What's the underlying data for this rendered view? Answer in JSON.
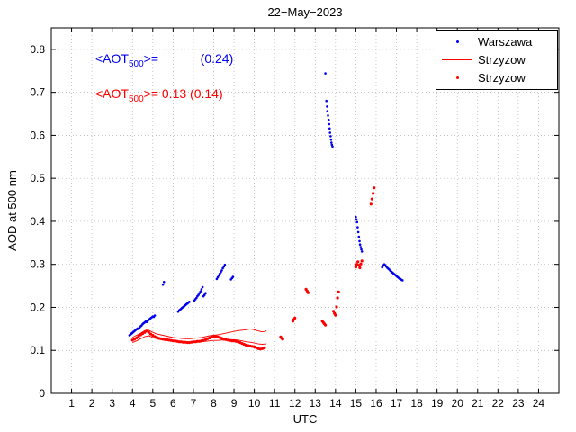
{
  "title": "22−May−2023",
  "annotations": {
    "blue": {
      "pre": "<AOT",
      "sub": "500",
      "post": ">=            (0.24)",
      "color": "#0000ee"
    },
    "red": {
      "pre": "<AOT",
      "sub": "500",
      "post": ">= 0.13 (0.14)",
      "color": "#ff0000"
    }
  },
  "legend": {
    "position": "top-right",
    "items": [
      {
        "label": "Warszawa",
        "marker": "dot",
        "color": "#0000ee"
      },
      {
        "label": "Strzyzow",
        "marker": "line",
        "color": "#ff0000"
      },
      {
        "label": "Strzyzow",
        "marker": "dot",
        "color": "#ff0000"
      }
    ]
  },
  "chart_data": {
    "type": "scatter",
    "title": "22−May−2023",
    "xlabel": "UTC",
    "ylabel": "AOD at 500 nm",
    "xlim": [
      0,
      25
    ],
    "ylim": [
      0,
      0.85
    ],
    "x_ticks": [
      1,
      2,
      3,
      4,
      5,
      6,
      7,
      8,
      9,
      10,
      11,
      12,
      13,
      14,
      15,
      16,
      17,
      18,
      19,
      20,
      21,
      22,
      23,
      24
    ],
    "y_ticks": [
      0,
      0.1,
      0.2,
      0.3,
      0.4,
      0.5,
      0.6,
      0.7,
      0.8
    ],
    "grid": true,
    "grid_color": "#b0b0b0",
    "legend_position": "top-right",
    "series": [
      {
        "name": "Warszawa",
        "type": "scatter",
        "color": "#0000ee",
        "marker_size": 1.3,
        "points": [
          [
            3.85,
            0.135
          ],
          [
            3.9,
            0.137
          ],
          [
            3.95,
            0.139
          ],
          [
            4.0,
            0.141
          ],
          [
            4.05,
            0.143
          ],
          [
            4.1,
            0.145
          ],
          [
            4.15,
            0.147
          ],
          [
            4.2,
            0.149
          ],
          [
            4.25,
            0.151
          ],
          [
            4.3,
            0.15
          ],
          [
            4.35,
            0.153
          ],
          [
            4.4,
            0.156
          ],
          [
            4.45,
            0.158
          ],
          [
            4.5,
            0.161
          ],
          [
            4.55,
            0.163
          ],
          [
            4.6,
            0.165
          ],
          [
            4.65,
            0.167
          ],
          [
            4.7,
            0.166
          ],
          [
            4.75,
            0.169
          ],
          [
            4.8,
            0.171
          ],
          [
            4.85,
            0.173
          ],
          [
            4.9,
            0.175
          ],
          [
            4.95,
            0.177
          ],
          [
            5.0,
            0.179
          ],
          [
            5.05,
            0.178
          ],
          [
            5.1,
            0.181
          ],
          [
            5.5,
            0.253
          ],
          [
            5.55,
            0.259
          ],
          [
            6.25,
            0.19
          ],
          [
            6.3,
            0.193
          ],
          [
            6.35,
            0.195
          ],
          [
            6.4,
            0.197
          ],
          [
            6.45,
            0.199
          ],
          [
            6.5,
            0.201
          ],
          [
            6.55,
            0.203
          ],
          [
            6.6,
            0.205
          ],
          [
            6.65,
            0.207
          ],
          [
            6.7,
            0.209
          ],
          [
            6.75,
            0.211
          ],
          [
            6.8,
            0.213
          ],
          [
            7.05,
            0.216
          ],
          [
            7.1,
            0.219
          ],
          [
            7.15,
            0.222
          ],
          [
            7.2,
            0.226
          ],
          [
            7.25,
            0.229
          ],
          [
            7.3,
            0.233
          ],
          [
            7.35,
            0.237
          ],
          [
            7.4,
            0.242
          ],
          [
            7.45,
            0.247
          ],
          [
            7.5,
            0.226
          ],
          [
            7.55,
            0.229
          ],
          [
            7.6,
            0.233
          ],
          [
            8.15,
            0.266
          ],
          [
            8.2,
            0.27
          ],
          [
            8.25,
            0.274
          ],
          [
            8.3,
            0.278
          ],
          [
            8.35,
            0.282
          ],
          [
            8.4,
            0.286
          ],
          [
            8.45,
            0.291
          ],
          [
            8.5,
            0.295
          ],
          [
            8.55,
            0.299
          ],
          [
            8.85,
            0.265
          ],
          [
            8.9,
            0.268
          ],
          [
            8.95,
            0.271
          ],
          [
            13.5,
            0.744
          ],
          [
            13.55,
            0.68
          ],
          [
            13.58,
            0.667
          ],
          [
            13.6,
            0.656
          ],
          [
            13.63,
            0.646
          ],
          [
            13.66,
            0.636
          ],
          [
            13.69,
            0.626
          ],
          [
            13.71,
            0.616
          ],
          [
            13.73,
            0.606
          ],
          [
            13.76,
            0.598
          ],
          [
            13.78,
            0.59
          ],
          [
            13.8,
            0.583
          ],
          [
            13.82,
            0.578
          ],
          [
            13.85,
            0.574
          ],
          [
            15.0,
            0.41
          ],
          [
            15.03,
            0.404
          ],
          [
            15.06,
            0.398
          ],
          [
            15.09,
            0.386
          ],
          [
            15.12,
            0.375
          ],
          [
            15.15,
            0.364
          ],
          [
            15.18,
            0.354
          ],
          [
            15.21,
            0.346
          ],
          [
            15.24,
            0.34
          ],
          [
            15.27,
            0.335
          ],
          [
            15.3,
            0.33
          ],
          [
            16.3,
            0.293
          ],
          [
            16.35,
            0.297
          ],
          [
            16.4,
            0.3
          ],
          [
            16.45,
            0.298
          ],
          [
            16.5,
            0.295
          ],
          [
            16.55,
            0.292
          ],
          [
            16.6,
            0.29
          ],
          [
            16.65,
            0.288
          ],
          [
            16.7,
            0.285
          ],
          [
            16.75,
            0.283
          ],
          [
            16.8,
            0.281
          ],
          [
            16.85,
            0.279
          ],
          [
            16.9,
            0.277
          ],
          [
            16.95,
            0.275
          ],
          [
            17.0,
            0.273
          ],
          [
            17.05,
            0.271
          ],
          [
            17.1,
            0.269
          ],
          [
            17.15,
            0.267
          ],
          [
            17.2,
            0.266
          ],
          [
            17.25,
            0.264
          ],
          [
            17.3,
            0.263
          ]
        ]
      },
      {
        "name": "Strzyzow (line upper)",
        "type": "line",
        "color": "#ff0000",
        "points": [
          [
            4.0,
            0.13
          ],
          [
            4.2,
            0.135
          ],
          [
            4.4,
            0.14
          ],
          [
            4.6,
            0.146
          ],
          [
            4.8,
            0.147
          ],
          [
            5.0,
            0.142
          ],
          [
            5.2,
            0.138
          ],
          [
            5.4,
            0.136
          ],
          [
            5.6,
            0.134
          ],
          [
            5.8,
            0.132
          ],
          [
            6.0,
            0.13
          ],
          [
            6.2,
            0.129
          ],
          [
            6.4,
            0.128
          ],
          [
            6.6,
            0.127
          ],
          [
            6.8,
            0.127
          ],
          [
            7.0,
            0.128
          ],
          [
            7.2,
            0.129
          ],
          [
            7.4,
            0.13
          ],
          [
            7.6,
            0.132
          ],
          [
            7.8,
            0.134
          ],
          [
            8.0,
            0.135
          ],
          [
            8.2,
            0.136
          ],
          [
            8.4,
            0.138
          ],
          [
            8.6,
            0.14
          ],
          [
            8.8,
            0.142
          ],
          [
            9.0,
            0.144
          ],
          [
            9.2,
            0.146
          ],
          [
            9.4,
            0.147
          ],
          [
            9.6,
            0.148
          ],
          [
            9.8,
            0.15
          ],
          [
            10.0,
            0.148
          ],
          [
            10.2,
            0.145
          ],
          [
            10.4,
            0.143
          ],
          [
            10.6,
            0.145
          ]
        ]
      },
      {
        "name": "Strzyzow (line lower)",
        "type": "line",
        "color": "#ff0000",
        "points": [
          [
            4.0,
            0.118
          ],
          [
            4.2,
            0.122
          ],
          [
            4.4,
            0.127
          ],
          [
            4.6,
            0.132
          ],
          [
            4.8,
            0.134
          ],
          [
            5.0,
            0.13
          ],
          [
            5.2,
            0.127
          ],
          [
            5.4,
            0.125
          ],
          [
            5.6,
            0.124
          ],
          [
            5.8,
            0.122
          ],
          [
            6.0,
            0.121
          ],
          [
            6.2,
            0.12
          ],
          [
            6.4,
            0.119
          ],
          [
            6.6,
            0.118
          ],
          [
            6.8,
            0.118
          ],
          [
            7.0,
            0.118
          ],
          [
            7.2,
            0.119
          ],
          [
            7.4,
            0.12
          ],
          [
            7.6,
            0.121
          ],
          [
            7.8,
            0.122
          ],
          [
            8.0,
            0.123
          ],
          [
            8.2,
            0.123
          ],
          [
            8.4,
            0.124
          ],
          [
            8.6,
            0.124
          ],
          [
            8.8,
            0.125
          ],
          [
            9.0,
            0.125
          ],
          [
            9.2,
            0.124
          ],
          [
            9.4,
            0.122
          ],
          [
            9.6,
            0.12
          ],
          [
            9.8,
            0.119
          ],
          [
            10.0,
            0.117
          ],
          [
            10.2,
            0.115
          ],
          [
            10.4,
            0.114
          ],
          [
            10.6,
            0.115
          ]
        ]
      },
      {
        "name": "Strzyzow",
        "type": "scatter",
        "color": "#ff0000",
        "marker_size": 1.6,
        "points": [
          [
            4.0,
            0.124
          ],
          [
            4.1,
            0.126
          ],
          [
            4.2,
            0.129
          ],
          [
            4.3,
            0.133
          ],
          [
            4.4,
            0.136
          ],
          [
            4.5,
            0.139
          ],
          [
            4.6,
            0.142
          ],
          [
            4.7,
            0.145
          ],
          [
            4.8,
            0.142
          ],
          [
            4.9,
            0.138
          ],
          [
            5.0,
            0.135
          ],
          [
            5.1,
            0.132
          ],
          [
            5.2,
            0.13
          ],
          [
            5.3,
            0.128
          ],
          [
            5.4,
            0.127
          ],
          [
            5.5,
            0.126
          ],
          [
            5.6,
            0.125
          ],
          [
            5.7,
            0.125
          ],
          [
            5.8,
            0.124
          ],
          [
            5.9,
            0.123
          ],
          [
            6.0,
            0.122
          ],
          [
            6.1,
            0.122
          ],
          [
            6.2,
            0.121
          ],
          [
            6.3,
            0.12
          ],
          [
            6.4,
            0.12
          ],
          [
            6.5,
            0.119
          ],
          [
            6.6,
            0.119
          ],
          [
            6.7,
            0.118
          ],
          [
            6.8,
            0.118
          ],
          [
            6.9,
            0.119
          ],
          [
            7.0,
            0.12
          ],
          [
            7.1,
            0.12
          ],
          [
            7.2,
            0.121
          ],
          [
            7.3,
            0.121
          ],
          [
            7.4,
            0.122
          ],
          [
            7.5,
            0.123
          ],
          [
            7.6,
            0.125
          ],
          [
            7.7,
            0.127
          ],
          [
            7.8,
            0.129
          ],
          [
            7.9,
            0.131
          ],
          [
            8.0,
            0.133
          ],
          [
            8.1,
            0.132
          ],
          [
            8.2,
            0.131
          ],
          [
            8.3,
            0.13
          ],
          [
            8.4,
            0.128
          ],
          [
            8.5,
            0.126
          ],
          [
            8.6,
            0.125
          ],
          [
            8.7,
            0.124
          ],
          [
            8.8,
            0.123
          ],
          [
            8.9,
            0.122
          ],
          [
            9.0,
            0.122
          ],
          [
            9.1,
            0.121
          ],
          [
            9.2,
            0.12
          ],
          [
            9.3,
            0.118
          ],
          [
            9.4,
            0.116
          ],
          [
            9.5,
            0.114
          ],
          [
            9.6,
            0.112
          ],
          [
            9.7,
            0.111
          ],
          [
            9.8,
            0.11
          ],
          [
            9.9,
            0.109
          ],
          [
            10.0,
            0.108
          ],
          [
            10.1,
            0.106
          ],
          [
            10.2,
            0.104
          ],
          [
            10.3,
            0.103
          ],
          [
            10.4,
            0.104
          ],
          [
            10.5,
            0.106
          ],
          [
            11.3,
            0.131
          ],
          [
            11.35,
            0.128
          ],
          [
            11.4,
            0.126
          ],
          [
            11.9,
            0.168
          ],
          [
            11.95,
            0.172
          ],
          [
            12.0,
            0.175
          ],
          [
            12.55,
            0.242
          ],
          [
            12.6,
            0.238
          ],
          [
            12.65,
            0.234
          ],
          [
            13.35,
            0.168
          ],
          [
            13.4,
            0.165
          ],
          [
            13.45,
            0.162
          ],
          [
            13.5,
            0.159
          ],
          [
            13.9,
            0.191
          ],
          [
            13.95,
            0.186
          ],
          [
            14.0,
            0.182
          ],
          [
            14.05,
            0.201
          ],
          [
            14.1,
            0.222
          ],
          [
            14.15,
            0.236
          ],
          [
            15.0,
            0.294
          ],
          [
            15.05,
            0.3
          ],
          [
            15.1,
            0.306
          ],
          [
            15.15,
            0.298
          ],
          [
            15.2,
            0.292
          ],
          [
            15.25,
            0.301
          ],
          [
            15.3,
            0.308
          ],
          [
            15.75,
            0.44
          ],
          [
            15.8,
            0.452
          ],
          [
            15.85,
            0.465
          ],
          [
            15.9,
            0.478
          ]
        ]
      }
    ]
  }
}
